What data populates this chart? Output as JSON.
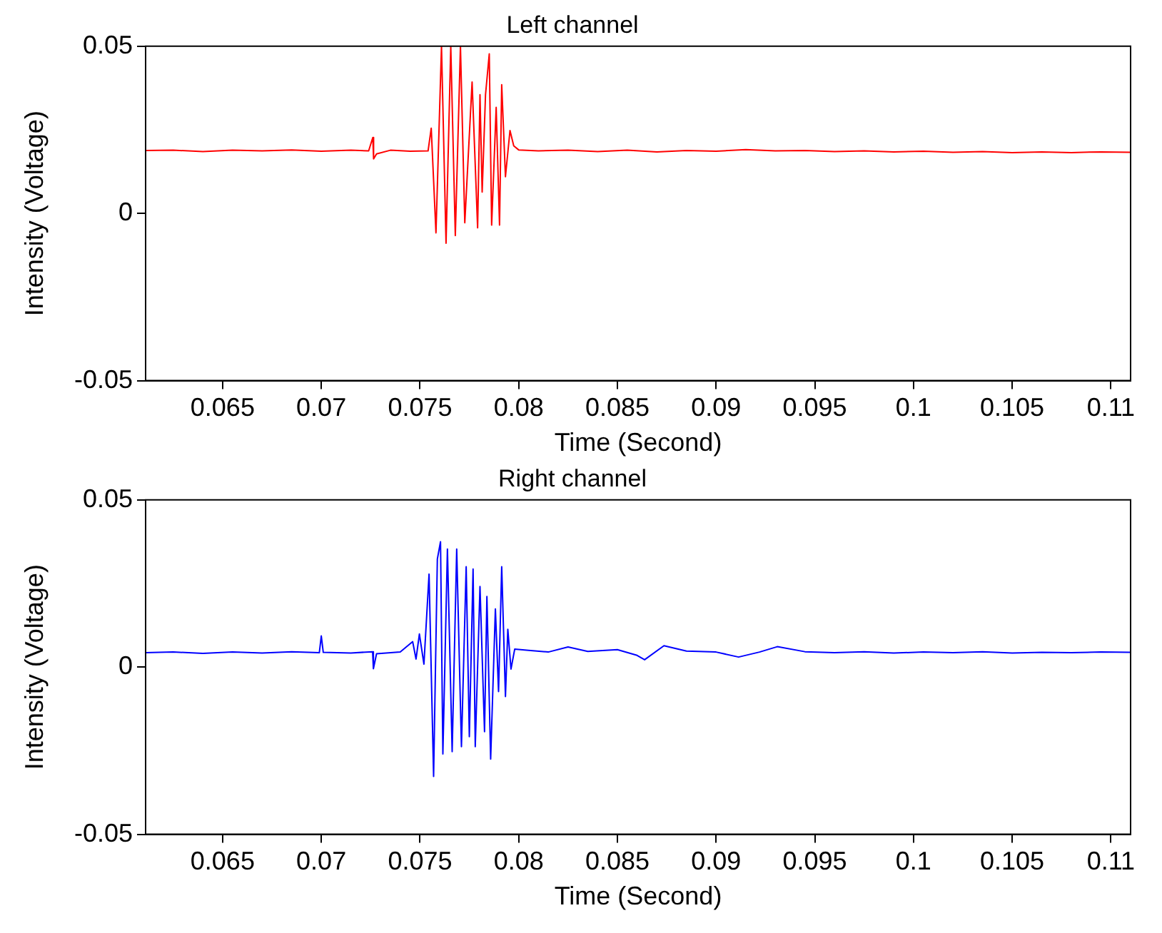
{
  "chart_data": [
    {
      "type": "line",
      "title": "Left channel",
      "xlabel": "Time (Second)",
      "ylabel": "Intensity (Voltage)",
      "xlim": [
        0.0611,
        0.111
      ],
      "ylim": [
        -0.05,
        0.05
      ],
      "xticks": [
        0.065,
        0.07,
        0.075,
        0.08,
        0.085,
        0.09,
        0.095,
        0.1,
        0.105,
        0.11
      ],
      "yticks": [
        -0.05,
        0,
        0.05
      ],
      "grid": false,
      "legend": false,
      "marker": "none",
      "line_style": "solid",
      "x": [
        0.0611,
        0.0625,
        0.064,
        0.0655,
        0.067,
        0.0685,
        0.07,
        0.0715,
        0.0724,
        0.07261,
        0.07265,
        0.0728,
        0.0735,
        0.0745,
        0.07541,
        0.07557,
        0.07581,
        0.07609,
        0.07632,
        0.07656,
        0.07679,
        0.07705,
        0.07727,
        0.07764,
        0.07792,
        0.07804,
        0.07815,
        0.07832,
        0.07851,
        0.07863,
        0.07886,
        0.07903,
        0.07914,
        0.07933,
        0.07956,
        0.07975,
        0.08,
        0.081,
        0.0825,
        0.084,
        0.0855,
        0.087,
        0.0885,
        0.09,
        0.0915,
        0.093,
        0.0945,
        0.096,
        0.0975,
        0.099,
        0.1005,
        0.102,
        0.1035,
        0.105,
        0.1065,
        0.108,
        0.1095,
        0.111
      ],
      "series": [
        {
          "color": "#ff0000",
          "values": [
            0.0188,
            0.0189,
            0.0185,
            0.0189,
            0.0187,
            0.019,
            0.0186,
            0.0189,
            0.0187,
            0.0227,
            0.0163,
            0.0178,
            0.0189,
            0.0186,
            0.0187,
            0.0255,
            -0.0058,
            0.05,
            -0.0089,
            0.05,
            -0.0066,
            0.05,
            -0.0028,
            0.0393,
            -0.0043,
            0.0355,
            0.0064,
            0.0355,
            0.0477,
            -0.0035,
            0.0317,
            -0.0035,
            0.0385,
            0.011,
            0.0248,
            0.0202,
            0.019,
            0.0187,
            0.0189,
            0.0185,
            0.0189,
            0.0184,
            0.0188,
            0.0186,
            0.0191,
            0.0187,
            0.0188,
            0.0185,
            0.0187,
            0.0184,
            0.0186,
            0.0183,
            0.0185,
            0.0182,
            0.0184,
            0.0182,
            0.0184,
            0.0183
          ]
        }
      ]
    },
    {
      "type": "line",
      "title": "Right channel",
      "xlabel": "Time (Second)",
      "ylabel": "Intensity (Voltage)",
      "xlim": [
        0.0611,
        0.111
      ],
      "ylim": [
        -0.05,
        0.05
      ],
      "xticks": [
        0.065,
        0.07,
        0.075,
        0.08,
        0.085,
        0.09,
        0.095,
        0.1,
        0.105,
        0.11
      ],
      "yticks": [
        -0.05,
        0,
        0.05
      ],
      "grid": false,
      "legend": false,
      "marker": "none",
      "line_style": "solid",
      "x": [
        0.0611,
        0.0625,
        0.064,
        0.0655,
        0.067,
        0.0685,
        0.0699,
        0.07,
        0.0701,
        0.0715,
        0.0726,
        0.07264,
        0.0728,
        0.074,
        0.07463,
        0.0748,
        0.07497,
        0.0752,
        0.07546,
        0.07569,
        0.07588,
        0.07604,
        0.07616,
        0.07639,
        0.07663,
        0.07686,
        0.0771,
        0.07734,
        0.0775,
        0.07769,
        0.0778,
        0.07804,
        0.07827,
        0.07839,
        0.07858,
        0.07882,
        0.07898,
        0.07914,
        0.07933,
        0.07945,
        0.07961,
        0.0798,
        0.0805,
        0.0815,
        0.0825,
        0.0835,
        0.085,
        0.086,
        0.08638,
        0.08736,
        0.0885,
        0.09,
        0.09114,
        0.0922,
        0.0931,
        0.0945,
        0.096,
        0.0975,
        0.099,
        0.1005,
        0.102,
        0.1035,
        0.105,
        0.1065,
        0.108,
        0.1095,
        0.111
      ],
      "series": [
        {
          "color": "#0000ff",
          "values": [
            0.0043,
            0.0045,
            0.0041,
            0.0045,
            0.0042,
            0.0046,
            0.0043,
            0.0093,
            0.0044,
            0.0042,
            0.0046,
            -0.0005,
            0.004,
            0.0045,
            0.0076,
            0.0024,
            0.0099,
            0.0009,
            0.0278,
            -0.0327,
            0.0323,
            0.0375,
            -0.026,
            0.0353,
            -0.0253,
            0.0353,
            -0.0238,
            0.03,
            -0.0208,
            0.0293,
            -0.0238,
            0.0241,
            -0.0193,
            0.0211,
            -0.0275,
            0.0174,
            -0.0073,
            0.03,
            -0.0088,
            0.0113,
            -0.0006,
            0.0054,
            0.005,
            0.0045,
            0.006,
            0.0047,
            0.0052,
            0.0035,
            0.0022,
            0.0064,
            0.0048,
            0.0045,
            0.003,
            0.0045,
            0.0061,
            0.0046,
            0.0043,
            0.0046,
            0.0042,
            0.0045,
            0.0043,
            0.0046,
            0.0042,
            0.0044,
            0.0043,
            0.0045,
            0.0044
          ]
        }
      ]
    }
  ]
}
